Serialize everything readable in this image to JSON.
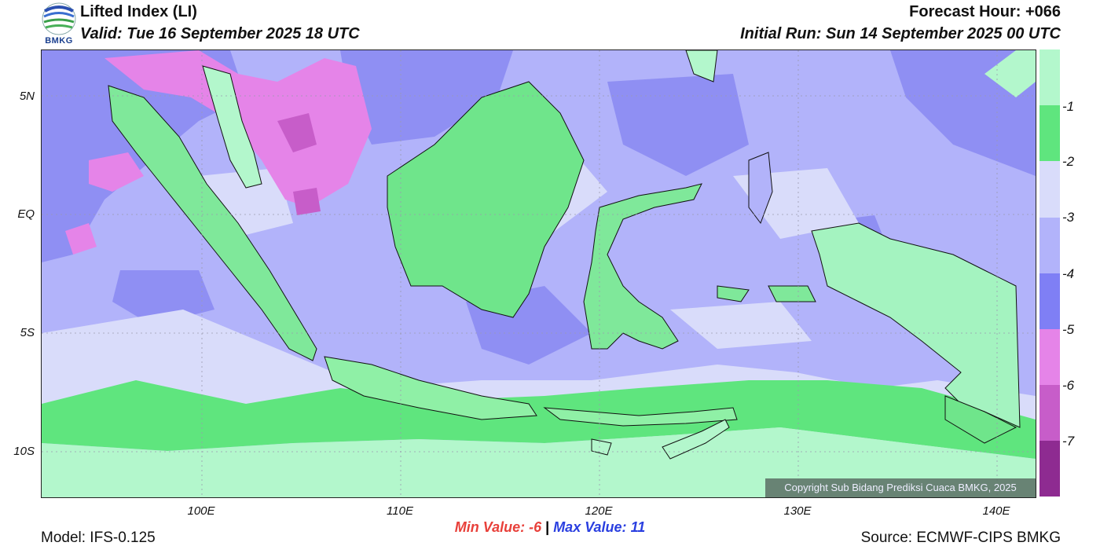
{
  "header": {
    "title": "Lifted Index (LI)",
    "valid": "Valid: Tue 16 September 2025 18 UTC",
    "forecast_hour": "Forecast Hour: +066",
    "initial_run": "Initial Run: Sun 14 September 2025 00 UTC"
  },
  "logo": {
    "text": "BMKG"
  },
  "axes": {
    "lat_labels": [
      "5N",
      "EQ",
      "5S",
      "10S"
    ],
    "lon_labels": [
      "100E",
      "110E",
      "120E",
      "130E",
      "140E"
    ]
  },
  "colorbar": {
    "labels": [
      "-1",
      "-2",
      "-3",
      "-4",
      "-5",
      "-6",
      "-7"
    ],
    "colors": [
      "#b3f7cc",
      "#5fe57e",
      "#d9dcfa",
      "#b2b3fa",
      "#7f7ff5",
      "#e584e8",
      "#c75dc9",
      "#8e2b91"
    ]
  },
  "copyright": "Copyright Sub Bidang Prediksi Cuaca BMKG, 2025",
  "stats": {
    "min_label": "Min Value:",
    "min_value": "-6",
    "separator": "|",
    "max_label": "Max Value:",
    "max_value": "11"
  },
  "footer": {
    "model": "Model: IFS-0.125",
    "source": "Source: ECMWF-CIPS BMKG"
  }
}
